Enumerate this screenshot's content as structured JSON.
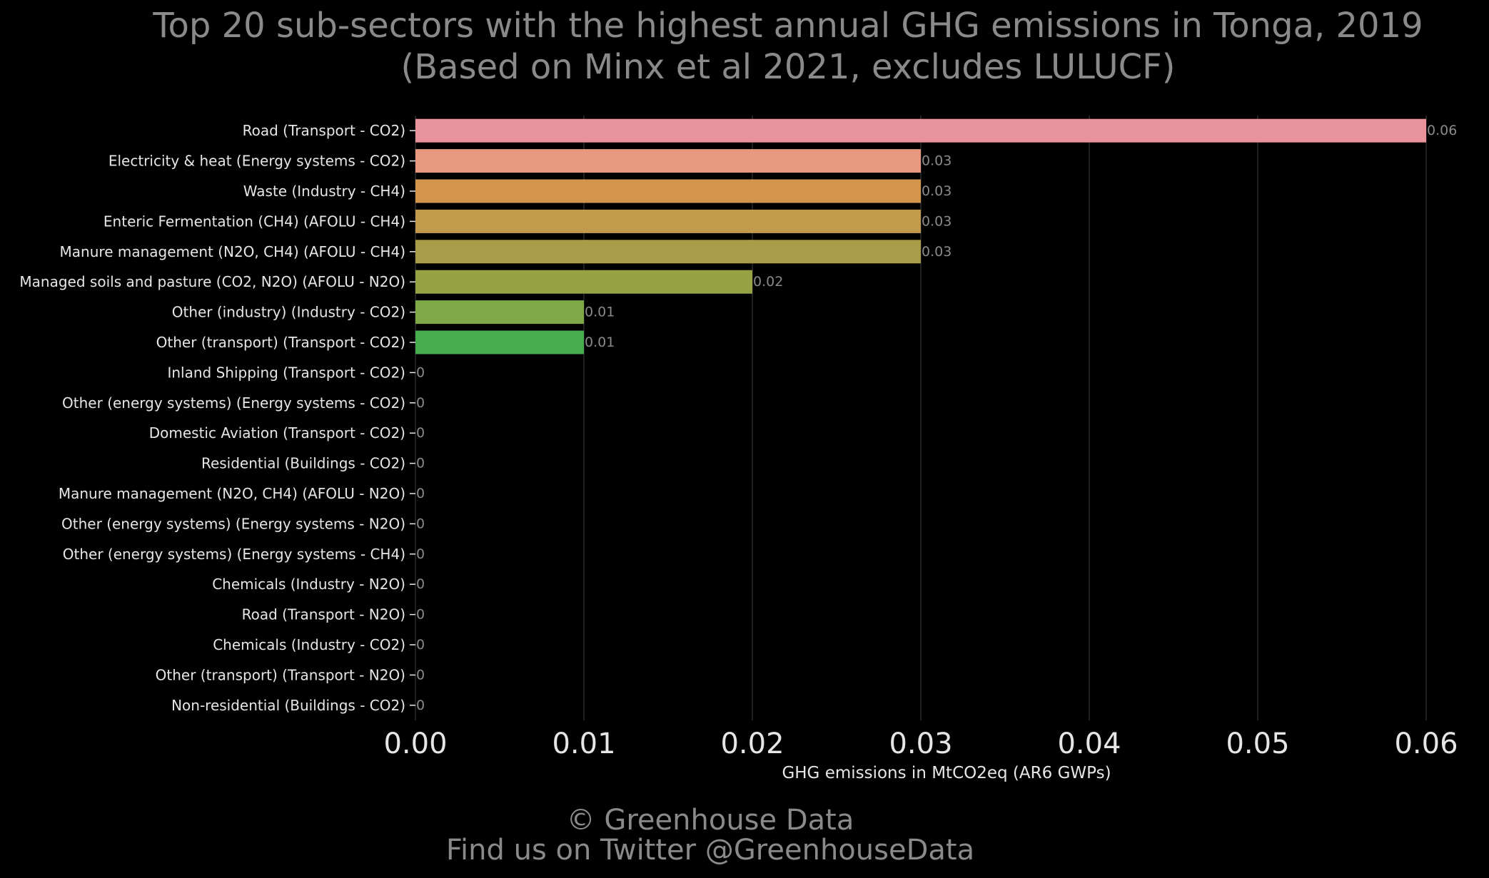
{
  "chart_data": {
    "type": "bar",
    "orientation": "horizontal",
    "title": "Top 20 sub-sectors with the highest annual GHG emissions in Tonga, 2019",
    "subtitle": "(Based on Minx et al 2021, excludes LULUCF)",
    "xlabel": "GHG emissions in MtCO2eq (AR6 GWPs)",
    "ylabel": "",
    "xlim": [
      0,
      0.06
    ],
    "xticks": [
      0,
      0.01,
      0.02,
      0.03,
      0.04,
      0.05,
      0.06
    ],
    "xtick_labels": [
      "0.00",
      "0.01",
      "0.02",
      "0.03",
      "0.04",
      "0.05",
      "0.06"
    ],
    "grid": true,
    "legend": false,
    "categories": [
      "Road (Transport - CO2)",
      "Electricity & heat (Energy systems - CO2)",
      "Waste (Industry - CH4)",
      "Enteric Fermentation (CH4) (AFOLU - CH4)",
      "Manure management (N2O, CH4) (AFOLU - CH4)",
      "Managed soils and pasture (CO2, N2O) (AFOLU - N2O)",
      "Other (industry) (Industry - CO2)",
      "Other (transport) (Transport - CO2)",
      "Inland Shipping (Transport - CO2)",
      "Other (energy systems) (Energy systems - CO2)",
      "Domestic Aviation (Transport - CO2)",
      "Residential (Buildings - CO2)",
      "Manure management (N2O, CH4) (AFOLU - N2O)",
      "Other (energy systems) (Energy systems - N2O)",
      "Other (energy systems) (Energy systems - CH4)",
      "Chemicals (Industry - N2O)",
      "Road (Transport - N2O)",
      "Chemicals (Industry - CO2)",
      "Other (transport) (Transport - N2O)",
      "Non-residential (Buildings - CO2)"
    ],
    "values": [
      0.06,
      0.03,
      0.03,
      0.03,
      0.03,
      0.02,
      0.01,
      0.01,
      0,
      0,
      0,
      0,
      0,
      0,
      0,
      0,
      0,
      0,
      0,
      0
    ],
    "value_labels": [
      "0.06",
      "0.03",
      "0.03",
      "0.03",
      "0.03",
      "0.02",
      "0.01",
      "0.01",
      "0",
      "0",
      "0",
      "0",
      "0",
      "0",
      "0",
      "0",
      "0",
      "0",
      "0",
      "0"
    ],
    "bar_colors": [
      "#e8939c",
      "#e8987f",
      "#d5944c",
      "#c39a4b",
      "#aa9b49",
      "#96a244",
      "#7ea946",
      "#46ad4e"
    ],
    "colors": {
      "background": "#000000",
      "grid": "#2b2b2b",
      "title_text": "#8a8a8a",
      "label_text": "#e6e6e6",
      "value_text": "#8a8a8a"
    }
  },
  "credits": {
    "line1": "© Greenhouse Data",
    "line2": "Find us on Twitter @GreenhouseData"
  }
}
